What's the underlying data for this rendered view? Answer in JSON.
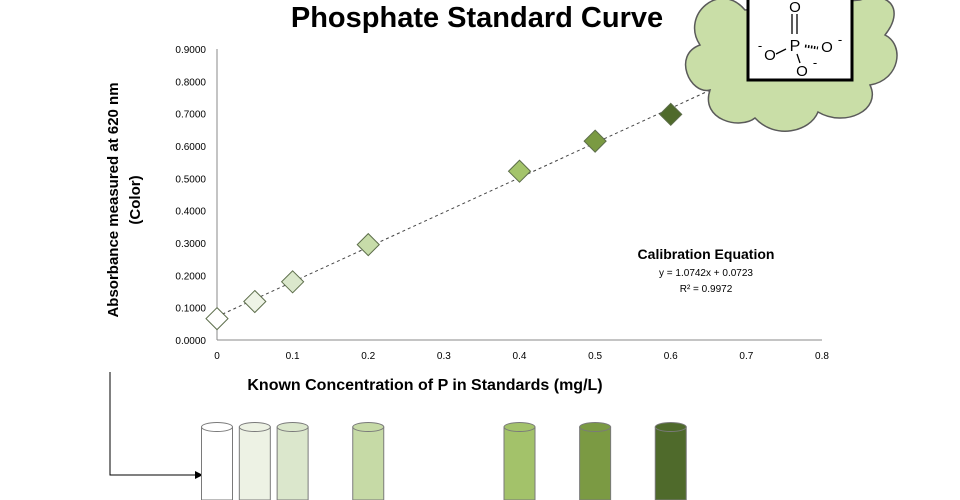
{
  "chart_data": {
    "type": "scatter",
    "title": "Phosphate Standard Curve",
    "xlabel": "Known Concentration  of P in Standards  (mg/L)",
    "ylabel_lines": [
      "Absorbance  measured  at 620 nm",
      "(Color)"
    ],
    "xlim": [
      0,
      0.8
    ],
    "ylim": [
      0,
      0.9
    ],
    "x_ticks": [
      "0",
      "0.1",
      "0.2",
      "0.3",
      "0.4",
      "0.5",
      "0.6",
      "0.7",
      "0.8"
    ],
    "y_ticks": [
      "0.0000",
      "0.1000",
      "0.2000",
      "0.3000",
      "0.4000",
      "0.5000",
      "0.6000",
      "0.7000",
      "0.8000",
      "0.9000"
    ],
    "grid": false,
    "points": [
      {
        "x": 0.0,
        "y": 0.066,
        "color": "#ffffff"
      },
      {
        "x": 0.05,
        "y": 0.119,
        "color": "#eef3e6"
      },
      {
        "x": 0.1,
        "y": 0.18,
        "color": "#dbe8cc"
      },
      {
        "x": 0.2,
        "y": 0.295,
        "color": "#c7dca9"
      },
      {
        "x": 0.4,
        "y": 0.522,
        "color": "#a4c46b"
      },
      {
        "x": 0.5,
        "y": 0.615,
        "color": "#7a9a42"
      },
      {
        "x": 0.6,
        "y": 0.698,
        "color": "#4f6a2b"
      }
    ],
    "trendline": {
      "slope": 1.0742,
      "intercept": 0.0723,
      "style": "dashed"
    },
    "annotation": {
      "title": "Calibration Equation",
      "equation": "y = 1.0742x + 0.0723",
      "r2": "R² = 0.9972"
    }
  },
  "molecule": {
    "atoms": [
      "O",
      "P",
      "O",
      "O",
      "O"
    ],
    "charges": [
      "-",
      "-",
      "-"
    ],
    "bubble_color": "#c9dea7"
  },
  "tubes": [
    {
      "x": 0.0,
      "color": "#ffffff"
    },
    {
      "x": 0.05,
      "color": "#edf2e4"
    },
    {
      "x": 0.1,
      "color": "#dbe7cc"
    },
    {
      "x": 0.2,
      "color": "#c6daa6"
    },
    {
      "x": 0.4,
      "color": "#a3c26a"
    },
    {
      "x": 0.5,
      "color": "#7b9a43"
    },
    {
      "x": 0.6,
      "color": "#4f6a2b"
    }
  ]
}
